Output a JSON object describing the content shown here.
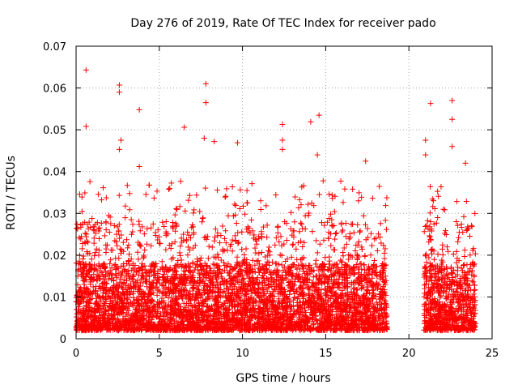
{
  "chart_data": {
    "type": "scatter",
    "title": "Day 276 of 2019, Rate Of TEC Index for receiver pado",
    "xlabel": "GPS time / hours",
    "ylabel": "ROTI / TECUs",
    "xlim": [
      0,
      25
    ],
    "ylim": [
      0,
      0.07
    ],
    "x_ticks": [
      0,
      5,
      10,
      15,
      20,
      25
    ],
    "y_ticks": [
      0,
      0.01,
      0.02,
      0.03,
      0.04,
      0.05,
      0.06,
      0.07
    ],
    "x_tick_labels": [
      "0",
      "5",
      "10",
      "15",
      "20",
      "25"
    ],
    "y_tick_labels": [
      "0",
      "0.01",
      "0.02",
      "0.03",
      "0.04",
      "0.05",
      "0.06",
      "0.07"
    ],
    "grid": true,
    "marker": "+",
    "color": "#ff0000",
    "data_gaps_hours": [
      [
        18.7,
        20.9
      ]
    ],
    "series": [
      {
        "name": "ROTI",
        "notable_points": [
          {
            "x": 0.6,
            "y": 0.0643
          },
          {
            "x": 0.6,
            "y": 0.0508
          },
          {
            "x": 2.6,
            "y": 0.0607
          },
          {
            "x": 2.6,
            "y": 0.059
          },
          {
            "x": 2.7,
            "y": 0.0475
          },
          {
            "x": 2.6,
            "y": 0.0453
          },
          {
            "x": 3.8,
            "y": 0.0548
          },
          {
            "x": 3.8,
            "y": 0.0412
          },
          {
            "x": 6.5,
            "y": 0.0506
          },
          {
            "x": 7.8,
            "y": 0.061
          },
          {
            "x": 7.8,
            "y": 0.0565
          },
          {
            "x": 7.7,
            "y": 0.048
          },
          {
            "x": 8.3,
            "y": 0.0472
          },
          {
            "x": 9.7,
            "y": 0.0469
          },
          {
            "x": 12.4,
            "y": 0.0513
          },
          {
            "x": 12.4,
            "y": 0.0475
          },
          {
            "x": 12.4,
            "y": 0.0453
          },
          {
            "x": 14.1,
            "y": 0.0519
          },
          {
            "x": 14.6,
            "y": 0.0535
          },
          {
            "x": 14.5,
            "y": 0.044
          },
          {
            "x": 17.4,
            "y": 0.0425
          },
          {
            "x": 21.0,
            "y": 0.0475
          },
          {
            "x": 21.0,
            "y": 0.044
          },
          {
            "x": 21.3,
            "y": 0.0563
          },
          {
            "x": 22.6,
            "y": 0.057
          },
          {
            "x": 22.6,
            "y": 0.0525
          },
          {
            "x": 22.6,
            "y": 0.046
          },
          {
            "x": 23.4,
            "y": 0.042
          }
        ],
        "bulk_segments": [
          {
            "start": 0.0,
            "end": 18.7,
            "base_min": 0.002,
            "base_max": 0.018,
            "peak_max": 0.038
          },
          {
            "start": 20.9,
            "end": 24.0,
            "base_min": 0.002,
            "base_max": 0.018,
            "peak_max": 0.037
          }
        ]
      }
    ]
  }
}
